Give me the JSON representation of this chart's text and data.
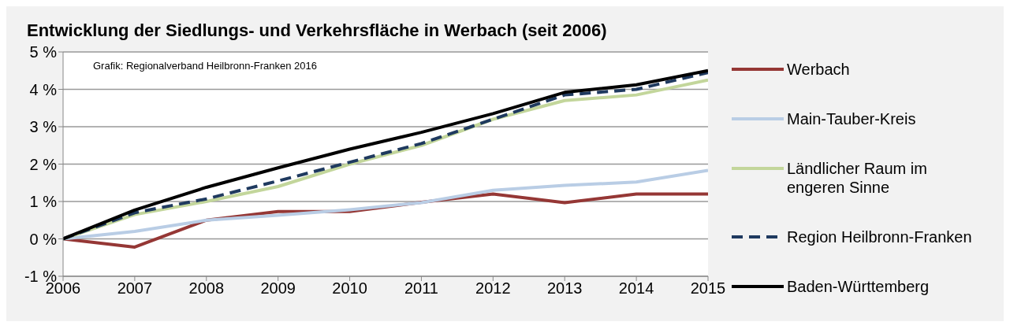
{
  "chart_data": {
    "type": "line",
    "title": "Entwicklung der Siedlungs- und Verkehrsfläche in Werbach (seit 2006)",
    "annotations": [
      "Grafik: Regionalverband Heilbronn-Franken 2016"
    ],
    "x": [
      2006,
      2007,
      2008,
      2009,
      2010,
      2011,
      2012,
      2013,
      2014,
      2015
    ],
    "xlim": [
      2006,
      2015
    ],
    "xticks": [
      2006,
      2007,
      2008,
      2009,
      2010,
      2011,
      2012,
      2013,
      2014,
      2015
    ],
    "ylim": [
      -1,
      5
    ],
    "yticks": [
      {
        "value": -1,
        "label": "-1 %"
      },
      {
        "value": 0,
        "label": "0 %"
      },
      {
        "value": 1,
        "label": "1 %"
      },
      {
        "value": 2,
        "label": "2 %"
      },
      {
        "value": 3,
        "label": "3 %"
      },
      {
        "value": 4,
        "label": "4 %"
      },
      {
        "value": 5,
        "label": "5 %"
      }
    ],
    "grid": "y",
    "legend": "right",
    "marker": "none",
    "series": [
      {
        "name": "Werbach",
        "color": "#953735",
        "line_style": "solid",
        "values": [
          0,
          -0.22,
          0.5,
          0.73,
          0.73,
          0.98,
          1.2,
          0.97,
          1.2,
          1.2
        ]
      },
      {
        "name": "Main-Tauber-Kreis",
        "color": "#b9cde5",
        "line_style": "solid",
        "values": [
          0,
          0.2,
          0.5,
          0.63,
          0.78,
          0.97,
          1.3,
          1.43,
          1.52,
          1.83
        ]
      },
      {
        "name": "Ländlicher Raum im engeren Sinne",
        "color": "#c3d69b",
        "line_style": "solid",
        "values": [
          0,
          0.65,
          1.0,
          1.4,
          2.0,
          2.5,
          3.2,
          3.7,
          3.85,
          4.25
        ]
      },
      {
        "name": "Region Heilbronn-Franken",
        "color": "#1f3a5f",
        "line_style": "dashed",
        "values": [
          0,
          0.7,
          1.07,
          1.55,
          2.05,
          2.55,
          3.2,
          3.85,
          4.0,
          4.45
        ]
      },
      {
        "name": "Baden-Württemberg",
        "color": "#000000",
        "line_style": "solid",
        "values": [
          0,
          0.77,
          1.38,
          1.9,
          2.4,
          2.85,
          3.35,
          3.92,
          4.12,
          4.5
        ]
      }
    ]
  }
}
